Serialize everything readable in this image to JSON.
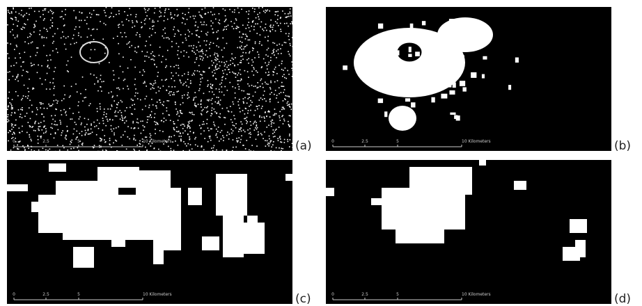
{
  "panels": [
    {
      "label": "(a)",
      "scale_labels": [
        "0",
        "2.5",
        "5",
        "10 Kilometers"
      ]
    },
    {
      "label": "(b)",
      "scale_labels": [
        "0",
        "2.5",
        "5",
        "10 Kilometers"
      ]
    },
    {
      "label": "(c)",
      "scale_labels": [
        "0",
        "2.5",
        "5",
        "10 Kilometers"
      ]
    },
    {
      "label": "(d)",
      "scale_labels": [
        "0",
        "2.5",
        "5",
        "10 Kilometers"
      ]
    }
  ]
}
